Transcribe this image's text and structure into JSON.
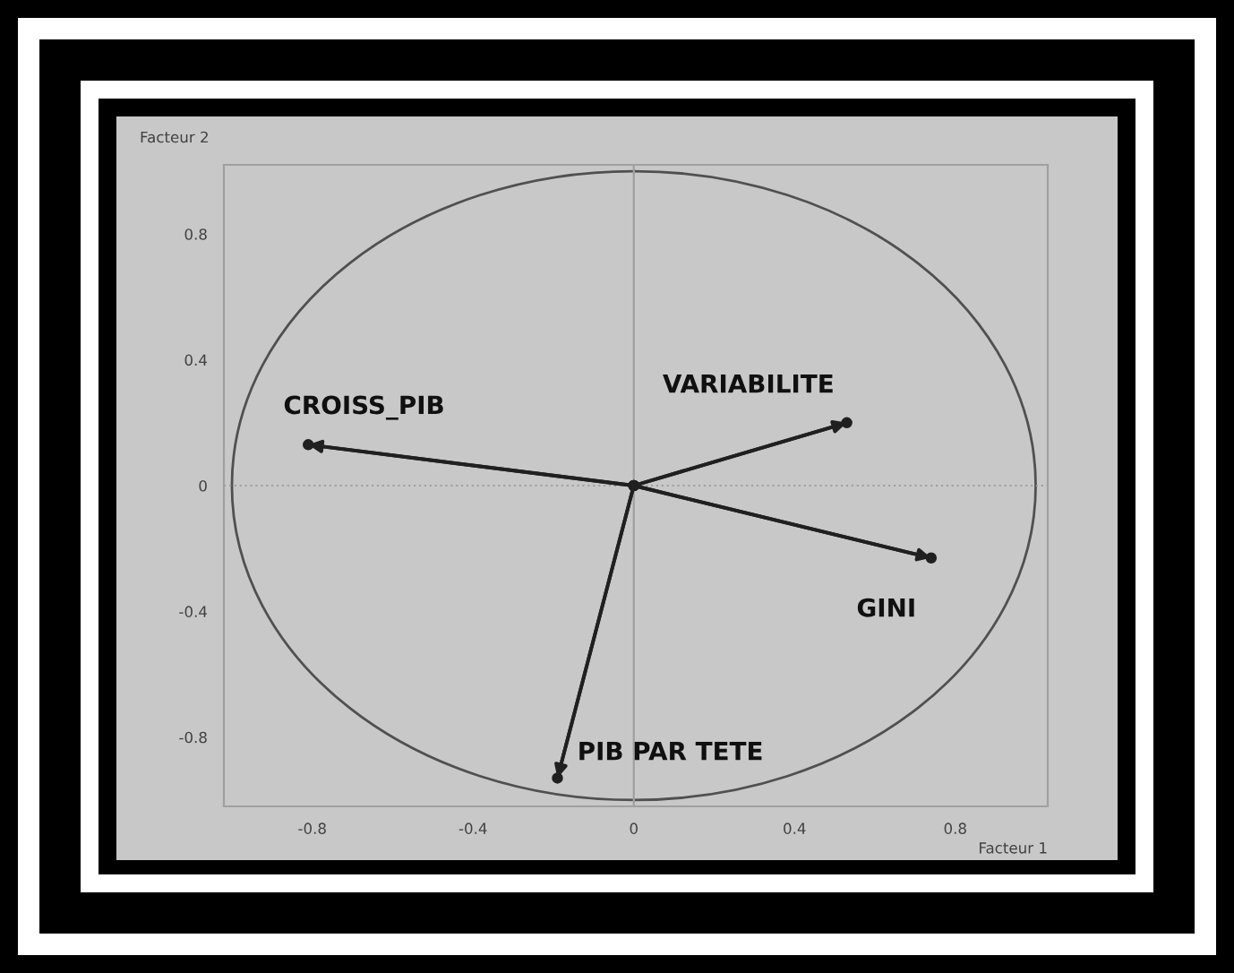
{
  "chart_data": {
    "type": "line",
    "xlabel": "Facteur 1",
    "ylabel": "Facteur 2",
    "xlim": [
      -1.02,
      1.03
    ],
    "ylim": [
      -1.02,
      1.02
    ],
    "xticks": [
      -0.8,
      -0.4,
      0,
      0.4,
      0.8
    ],
    "yticks": [
      -0.8,
      -0.4,
      0,
      0.4,
      0.8
    ],
    "marker": "circle",
    "line_style": "solid",
    "ref_lines": [
      {
        "axis": "y",
        "value": 0,
        "line_style": "dotted",
        "color": "#a0a0a0"
      },
      {
        "axis": "x",
        "value": 0,
        "line_style": "solid",
        "color": "#a0a0a0"
      }
    ],
    "series": [
      {
        "name": "CROISS_PIB",
        "color": "#202020",
        "x": [
          0,
          -0.81
        ],
        "values": [
          0,
          0.13
        ]
      },
      {
        "name": "VARIABILITE",
        "color": "#202020",
        "x": [
          0,
          0.53
        ],
        "values": [
          0,
          0.2
        ]
      },
      {
        "name": "GINI",
        "color": "#202020",
        "x": [
          0,
          0.74
        ],
        "values": [
          0,
          -0.23
        ]
      },
      {
        "name": "PIB PAR TETE",
        "color": "#202020",
        "x": [
          0,
          -0.19
        ],
        "values": [
          0,
          -0.93
        ]
      }
    ]
  }
}
